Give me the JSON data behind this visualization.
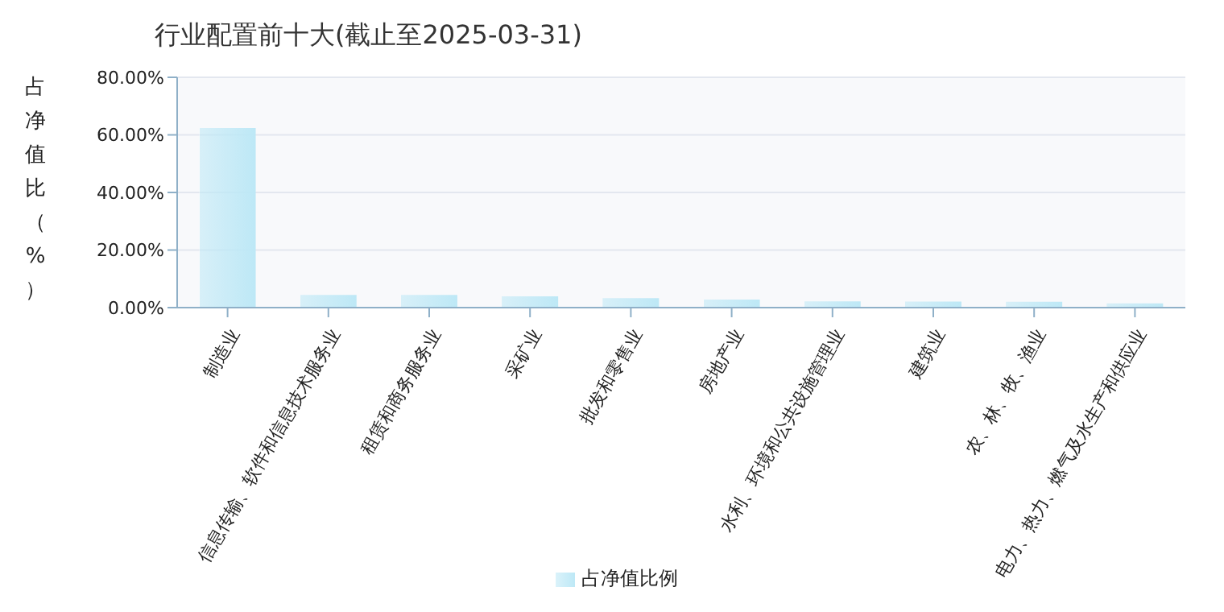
{
  "chart_data": {
    "type": "bar",
    "title": "行业配置前十大(截止至2025-03-31)",
    "ylabel": "占净值比（%）",
    "categories": [
      "制造业",
      "信息传输、软件和信息技术服务业",
      "租赁和商务服务业",
      "采矿业",
      "批发和零售业",
      "房地产业",
      "水利、环境和公共设施管理业",
      "建筑业",
      "农、林、牧、渔业",
      "电力、热力、燃气及水生产和供应业"
    ],
    "series": [
      {
        "name": "占净值比例",
        "color": "#bde8f6",
        "values": [
          62.4,
          4.4,
          4.4,
          3.9,
          3.3,
          2.8,
          2.2,
          2.1,
          2.0,
          1.5
        ]
      }
    ],
    "ylim": [
      0,
      80
    ],
    "yticks": [
      {
        "value": 0,
        "label": "0.00%"
      },
      {
        "value": 20,
        "label": "20.00%"
      },
      {
        "value": 40,
        "label": "40.00%"
      },
      {
        "value": 60,
        "label": "60.00%"
      },
      {
        "value": 80,
        "label": "80.00%"
      }
    ],
    "grid": "y",
    "legend": "bottom"
  }
}
